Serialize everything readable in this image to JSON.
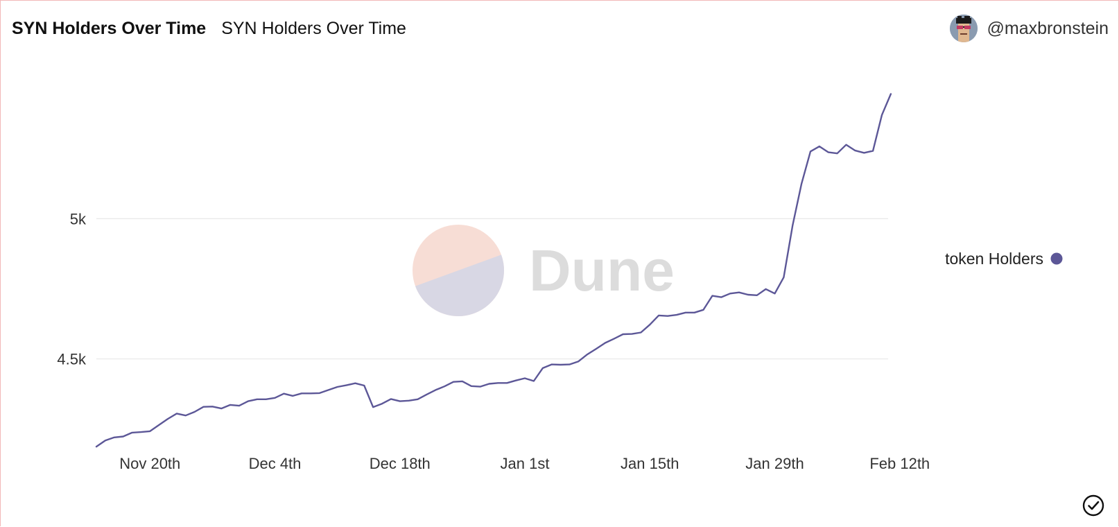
{
  "header": {
    "title": "SYN Holders Over Time",
    "subtitle": "SYN Holders Over Time",
    "author": "@maxbronstein",
    "avatar_icon": "pixel-avatar-icon"
  },
  "watermark": {
    "text": "Dune"
  },
  "colors": {
    "line": "#5c5797",
    "grid": "#e8e8e8",
    "axis_text": "#333333"
  },
  "chart_data": {
    "type": "line",
    "title": "SYN Holders Over Time",
    "xlabel": "",
    "ylabel": "",
    "x_tick_labels": [
      "Nov 20th",
      "Dec 4th",
      "Dec 18th",
      "Jan 1st",
      "Jan 15th",
      "Jan 29th",
      "Feb 12th"
    ],
    "y_tick_labels": [
      "4.5k",
      "5k"
    ],
    "y_ticks": [
      4500,
      5000
    ],
    "ylim": [
      4165,
      5555
    ],
    "grid": true,
    "legend": "right",
    "series": [
      {
        "name": "token Holders",
        "color": "#5c5797",
        "points": [
          [
            "2021-11-14",
            4187
          ],
          [
            "2021-11-15",
            4209
          ],
          [
            "2021-11-16",
            4220
          ],
          [
            "2021-11-17",
            4223
          ],
          [
            "2021-11-18",
            4237
          ],
          [
            "2021-11-19",
            4239
          ],
          [
            "2021-11-20",
            4242
          ],
          [
            "2021-11-21",
            4264
          ],
          [
            "2021-11-22",
            4286
          ],
          [
            "2021-11-23",
            4305
          ],
          [
            "2021-11-24",
            4298
          ],
          [
            "2021-11-25",
            4311
          ],
          [
            "2021-11-26",
            4329
          ],
          [
            "2021-11-27",
            4330
          ],
          [
            "2021-11-28",
            4323
          ],
          [
            "2021-11-29",
            4336
          ],
          [
            "2021-11-30",
            4333
          ],
          [
            "2021-12-01",
            4349
          ],
          [
            "2021-12-02",
            4356
          ],
          [
            "2021-12-03",
            4356
          ],
          [
            "2021-12-04",
            4361
          ],
          [
            "2021-12-05",
            4376
          ],
          [
            "2021-12-06",
            4368
          ],
          [
            "2021-12-07",
            4377
          ],
          [
            "2021-12-08",
            4377
          ],
          [
            "2021-12-09",
            4378
          ],
          [
            "2021-12-10",
            4389
          ],
          [
            "2021-12-11",
            4400
          ],
          [
            "2021-12-12",
            4406
          ],
          [
            "2021-12-13",
            4413
          ],
          [
            "2021-12-14",
            4405
          ],
          [
            "2021-12-15",
            4328
          ],
          [
            "2021-12-16",
            4340
          ],
          [
            "2021-12-17",
            4357
          ],
          [
            "2021-12-18",
            4349
          ],
          [
            "2021-12-19",
            4351
          ],
          [
            "2021-12-20",
            4356
          ],
          [
            "2021-12-21",
            4373
          ],
          [
            "2021-12-22",
            4389
          ],
          [
            "2021-12-23",
            4402
          ],
          [
            "2021-12-24",
            4418
          ],
          [
            "2021-12-25",
            4420
          ],
          [
            "2021-12-26",
            4403
          ],
          [
            "2021-12-27",
            4401
          ],
          [
            "2021-12-28",
            4411
          ],
          [
            "2021-12-29",
            4414
          ],
          [
            "2021-12-30",
            4414
          ],
          [
            "2021-12-31",
            4423
          ],
          [
            "2022-01-01",
            4431
          ],
          [
            "2022-01-02",
            4421
          ],
          [
            "2022-01-03",
            4467
          ],
          [
            "2022-01-04",
            4480
          ],
          [
            "2022-01-05",
            4479
          ],
          [
            "2022-01-06",
            4480
          ],
          [
            "2022-01-07",
            4491
          ],
          [
            "2022-01-08",
            4516
          ],
          [
            "2022-01-09",
            4536
          ],
          [
            "2022-01-10",
            4557
          ],
          [
            "2022-01-11",
            4572
          ],
          [
            "2022-01-12",
            4588
          ],
          [
            "2022-01-13",
            4589
          ],
          [
            "2022-01-14",
            4594
          ],
          [
            "2022-01-15",
            4622
          ],
          [
            "2022-01-16",
            4655
          ],
          [
            "2022-01-17",
            4653
          ],
          [
            "2022-01-18",
            4657
          ],
          [
            "2022-01-19",
            4665
          ],
          [
            "2022-01-20",
            4665
          ],
          [
            "2022-01-21",
            4675
          ],
          [
            "2022-01-22",
            4725
          ],
          [
            "2022-01-23",
            4720
          ],
          [
            "2022-01-24",
            4733
          ],
          [
            "2022-01-25",
            4737
          ],
          [
            "2022-01-26",
            4729
          ],
          [
            "2022-01-27",
            4727
          ],
          [
            "2022-01-28",
            4749
          ],
          [
            "2022-01-29",
            4733
          ],
          [
            "2022-01-30",
            4791
          ],
          [
            "2022-01-31",
            4977
          ],
          [
            "2022-02-01",
            5125
          ],
          [
            "2022-02-02",
            5240
          ],
          [
            "2022-02-03",
            5258
          ],
          [
            "2022-02-04",
            5237
          ],
          [
            "2022-02-05",
            5233
          ],
          [
            "2022-02-06",
            5264
          ],
          [
            "2022-02-07",
            5243
          ],
          [
            "2022-02-08",
            5235
          ],
          [
            "2022-02-09",
            5242
          ],
          [
            "2022-02-10",
            5370
          ],
          [
            "2022-02-11",
            5445
          ]
        ]
      }
    ]
  }
}
